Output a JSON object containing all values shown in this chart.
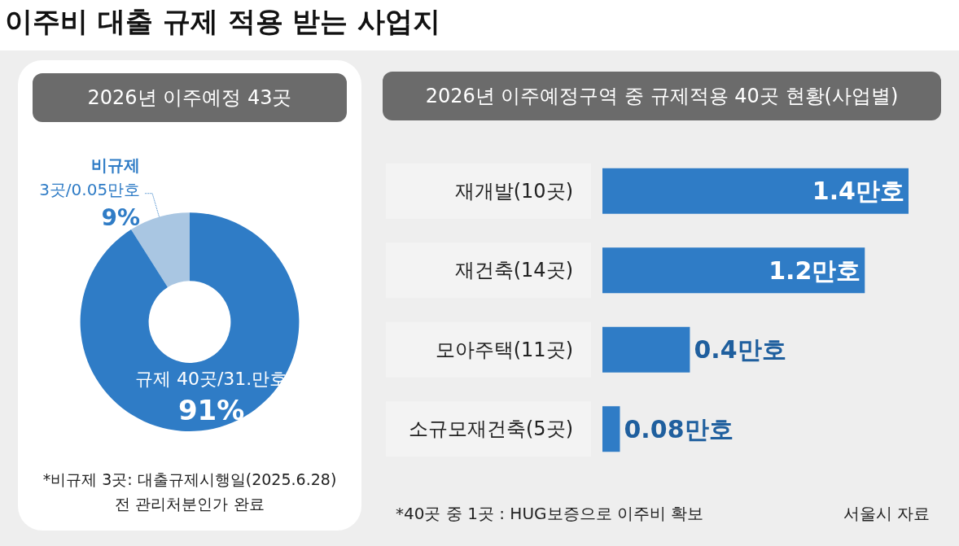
{
  "chart_data": [
    {
      "type": "donut",
      "title": "이주비 대출 규제 적용 받는 사업지",
      "subtitle": "2026년 이주예정 43곳",
      "categories": [
        "비규제\n3곳/0.05만호",
        "규제 40곳/31.만호"
      ],
      "values": [
        9,
        91
      ],
      "value_labels": [
        "9%",
        "91%"
      ],
      "colors": [
        "#a9c6e2",
        "#2f7cc6"
      ],
      "annotations": [
        "*비규제 3곳: 대출규제시행일(2025.6.28)\n전 관리처분인가 완료"
      ]
    },
    {
      "type": "bar",
      "orientation": "horizontal",
      "title": "2026년 이주예정구역 중 규제적용 40곳 현황(사업별)",
      "categories": [
        "재개발(10곳)",
        "재건축(14곳)",
        "모아주택(11곳)",
        "소규모재건축(5곳)"
      ],
      "values": [
        1.4,
        1.2,
        0.4,
        0.08
      ],
      "value_labels": [
        "1.4만호",
        "1.2만호",
        "0.4만호",
        "0.08만호"
      ],
      "color": "#2f7cc6",
      "annotations": [
        "*40곳 중 1곳 : HUG보증으로 이주비 확보",
        "서울시 자료"
      ]
    }
  ]
}
